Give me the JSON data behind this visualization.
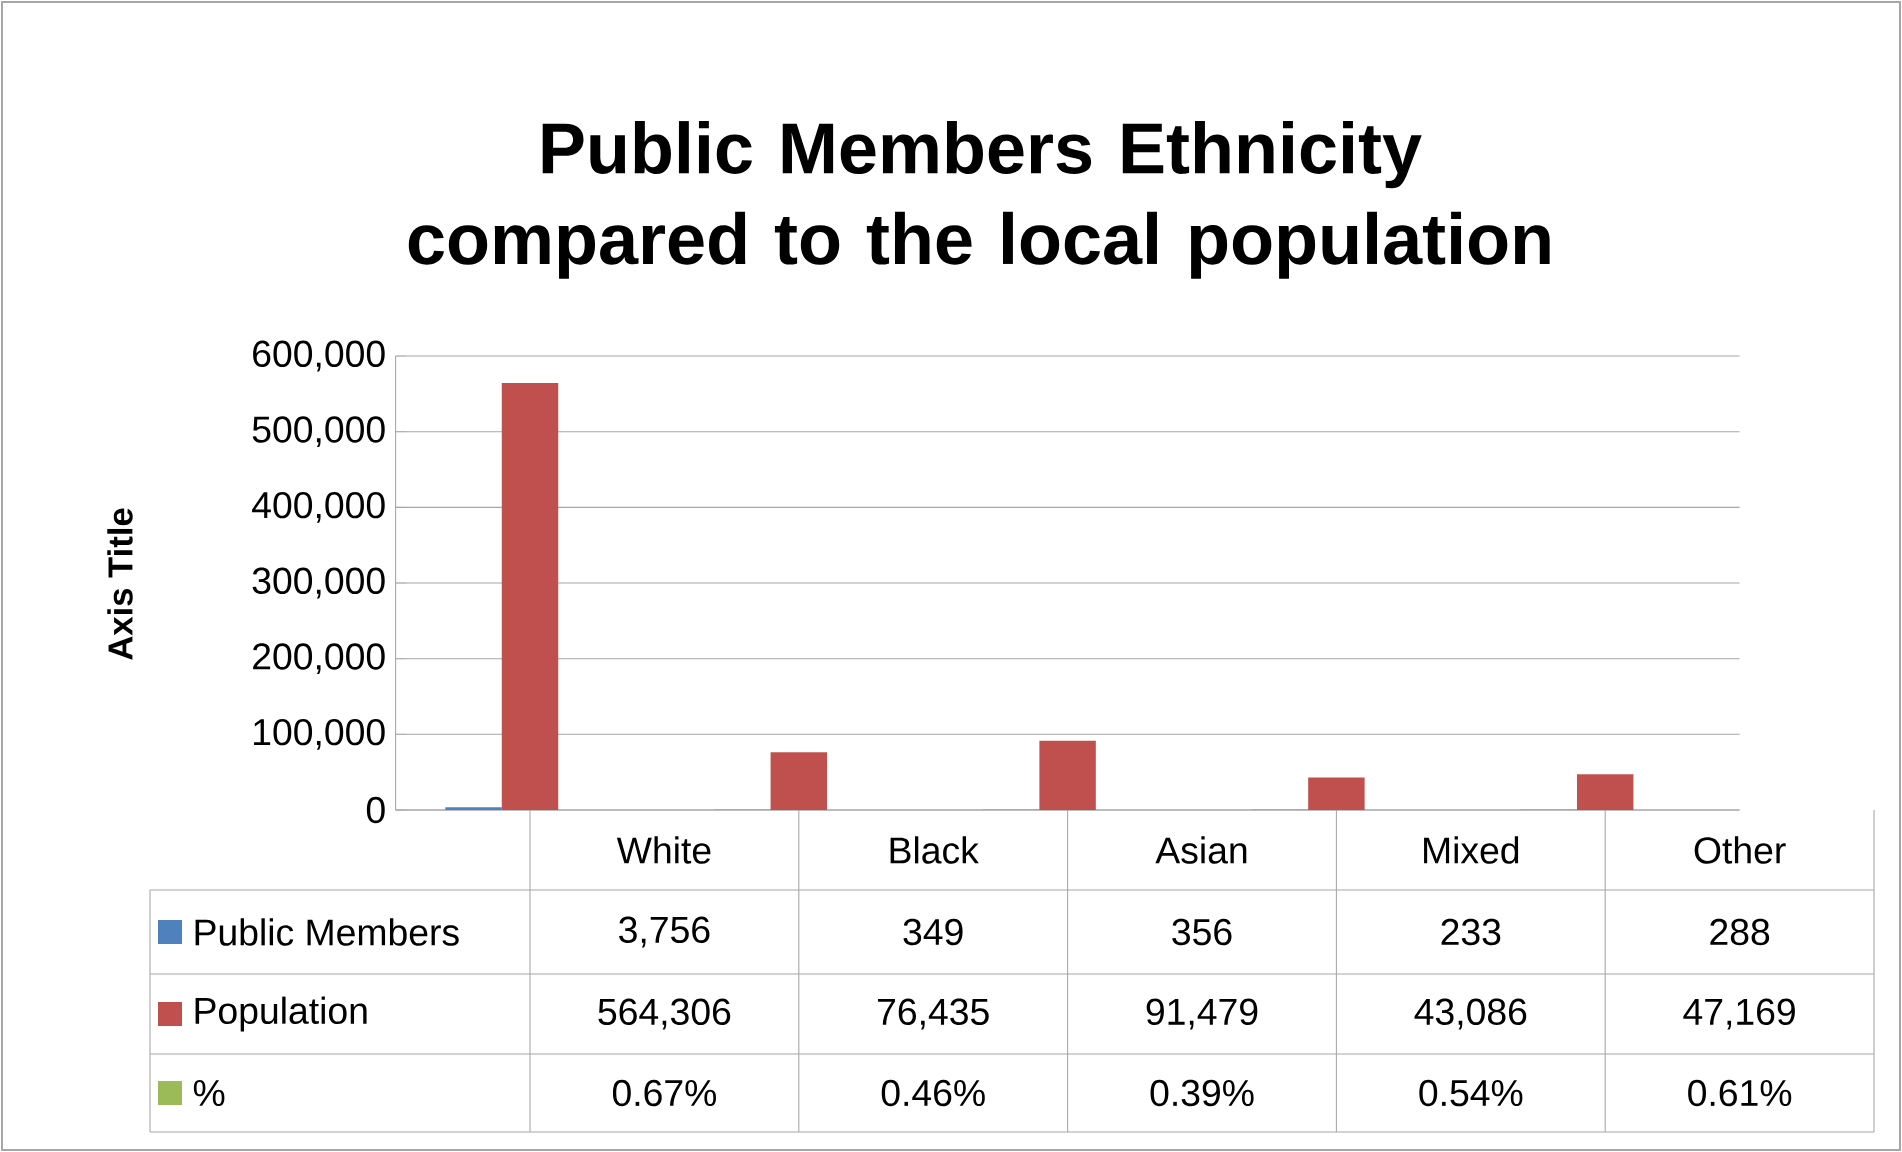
{
  "chart_data": {
    "type": "bar",
    "title": "Public Members Ethnicity compared to the local population",
    "ylabel": "Axis Title",
    "categories": [
      "White",
      "Black",
      "Asian",
      "Mixed",
      "Other"
    ],
    "series": [
      {
        "name": "Public Members",
        "color": "#4f81bd",
        "values": [
          3756,
          349,
          356,
          233,
          288
        ],
        "value_labels": [
          "3,756",
          "349",
          "356",
          "233",
          "288"
        ]
      },
      {
        "name": "Population",
        "color": "#c0504d",
        "values": [
          564306,
          76435,
          91479,
          43086,
          47169
        ],
        "value_labels": [
          "564,306",
          "76,435",
          "91,479",
          "43,086",
          "47,169"
        ]
      },
      {
        "name": "%",
        "color": "#9bbb59",
        "values": [
          0.67,
          0.46,
          0.39,
          0.54,
          0.61
        ],
        "value_labels": [
          "0.67%",
          "0.46%",
          "0.39%",
          "0.54%",
          "0.61%"
        ]
      }
    ],
    "ylim": [
      0,
      600000
    ],
    "yticks": [
      {
        "value": 0,
        "label": "0"
      },
      {
        "value": 100000,
        "label": "100,000"
      },
      {
        "value": 200000,
        "label": "200,000"
      },
      {
        "value": 300000,
        "label": "300,000"
      },
      {
        "value": 400000,
        "label": "400,000"
      },
      {
        "value": 500000,
        "label": "500,000"
      },
      {
        "value": 600000,
        "label": "600,000"
      }
    ],
    "grid": "y",
    "legend": "bottom"
  }
}
